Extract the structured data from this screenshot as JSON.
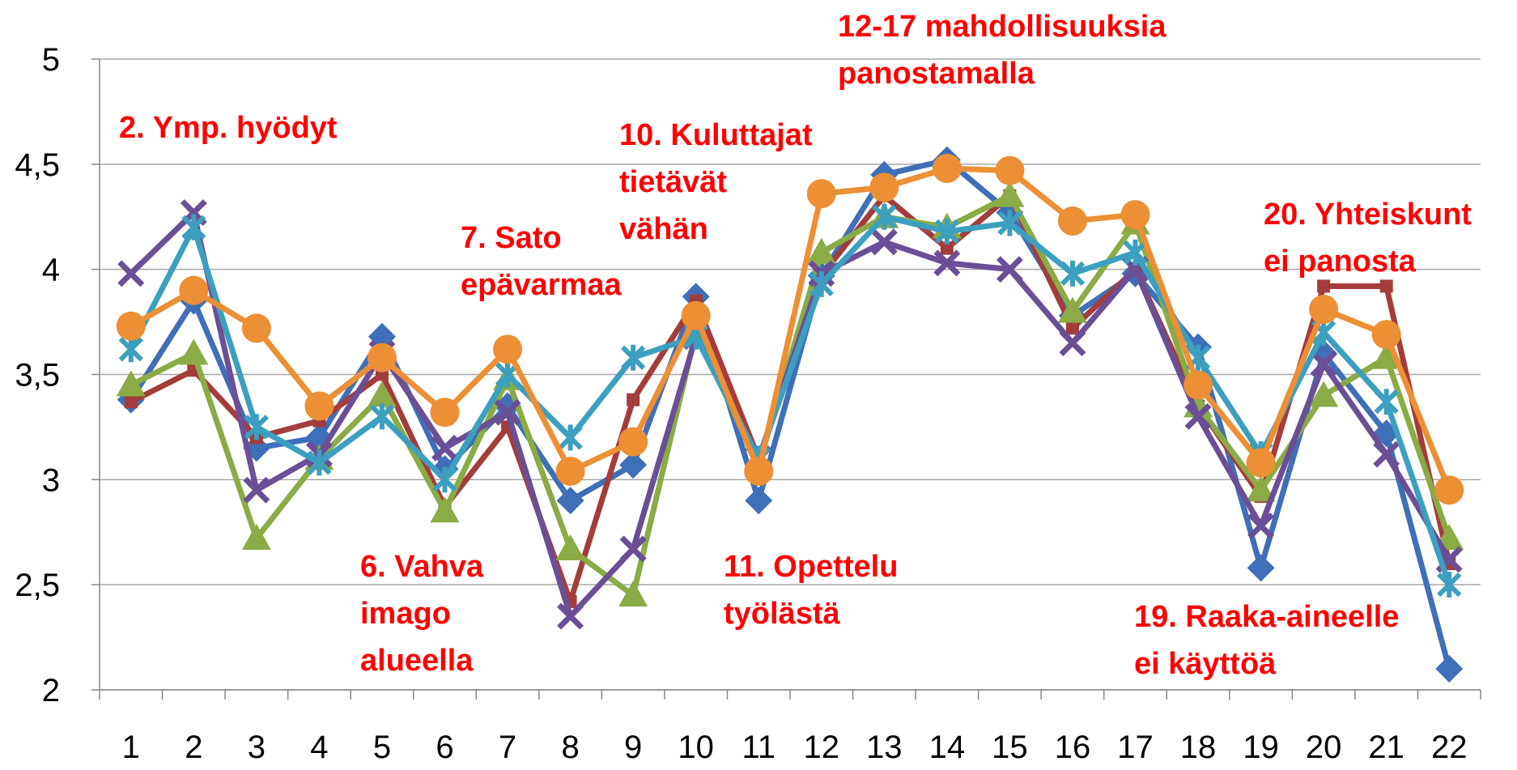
{
  "chart_data": {
    "type": "line",
    "categories": [
      "1",
      "2",
      "3",
      "4",
      "5",
      "6",
      "7",
      "8",
      "9",
      "10",
      "11",
      "12",
      "13",
      "14",
      "15",
      "16",
      "17",
      "18",
      "19",
      "20",
      "21",
      "22"
    ],
    "ylim": [
      2,
      5
    ],
    "yticks": [
      2,
      {
        "value": 2.5,
        "label": "2,5"
      },
      3,
      {
        "value": 3.5,
        "label": "3,5"
      },
      4,
      {
        "value": 4.5,
        "label": "4,5"
      },
      5
    ],
    "grid": true,
    "series": [
      {
        "color": "#3f6fb8",
        "marker": "diamond",
        "values": [
          3.38,
          3.85,
          3.15,
          3.2,
          3.68,
          3.05,
          3.35,
          2.9,
          3.07,
          3.87,
          2.9,
          3.97,
          4.45,
          4.52,
          4.27,
          3.78,
          3.98,
          3.63,
          2.58,
          3.6,
          3.22,
          2.1
        ]
      },
      {
        "color": "#a33d3b",
        "marker": "square",
        "values": [
          3.37,
          3.52,
          3.2,
          3.28,
          3.5,
          2.87,
          3.25,
          2.42,
          3.38,
          3.85,
          3.1,
          3.97,
          4.35,
          4.1,
          4.35,
          3.72,
          4.0,
          3.35,
          2.92,
          3.92,
          3.92,
          2.6
        ]
      },
      {
        "color": "#8aab45",
        "marker": "triangle",
        "values": [
          3.45,
          3.6,
          2.72,
          3.1,
          3.4,
          2.85,
          3.48,
          2.67,
          2.45,
          3.7,
          3.07,
          4.08,
          4.25,
          4.2,
          4.35,
          3.8,
          4.22,
          3.35,
          2.95,
          3.4,
          3.58,
          2.72
        ]
      },
      {
        "color": "#6b4f96",
        "marker": "x",
        "values": [
          3.98,
          4.27,
          2.95,
          3.12,
          3.6,
          3.15,
          3.32,
          2.35,
          2.67,
          3.68,
          3.1,
          3.98,
          4.13,
          4.03,
          4.0,
          3.65,
          4.0,
          3.3,
          2.78,
          3.55,
          3.12,
          2.62
        ]
      },
      {
        "color": "#3d9fc0",
        "marker": "star",
        "values": [
          3.62,
          4.2,
          3.25,
          3.08,
          3.3,
          3.0,
          3.5,
          3.2,
          3.58,
          3.68,
          3.1,
          3.93,
          4.25,
          4.18,
          4.22,
          3.98,
          4.08,
          3.58,
          3.12,
          3.7,
          3.37,
          2.5
        ]
      },
      {
        "color": "#ec8f35",
        "marker": "circle",
        "values": [
          3.73,
          3.9,
          3.72,
          3.35,
          3.58,
          3.32,
          3.62,
          3.04,
          3.18,
          3.78,
          3.04,
          4.36,
          4.39,
          4.48,
          4.47,
          4.23,
          4.26,
          3.45,
          3.08,
          3.81,
          3.69,
          2.95
        ]
      }
    ],
    "annotations": [
      {
        "lines": [
          "12-17 mahdollisuuksia",
          "panostamalla"
        ]
      },
      {
        "lines": [
          "2. Ymp. hyödyt"
        ]
      },
      {
        "lines": [
          "10. Kuluttajat",
          "tietävät",
          "vähän"
        ]
      },
      {
        "lines": [
          "7. Sato",
          "epävarmaa"
        ]
      },
      {
        "lines": [
          "20. Yhteiskunt",
          "ei panosta"
        ]
      },
      {
        "lines": [
          "6. Vahva",
          "imago",
          "alueella"
        ]
      },
      {
        "lines": [
          "11. Opettelu",
          "työlästä"
        ]
      },
      {
        "lines": [
          "19. Raaka-aineelle",
          "ei käyttöä"
        ]
      }
    ]
  }
}
